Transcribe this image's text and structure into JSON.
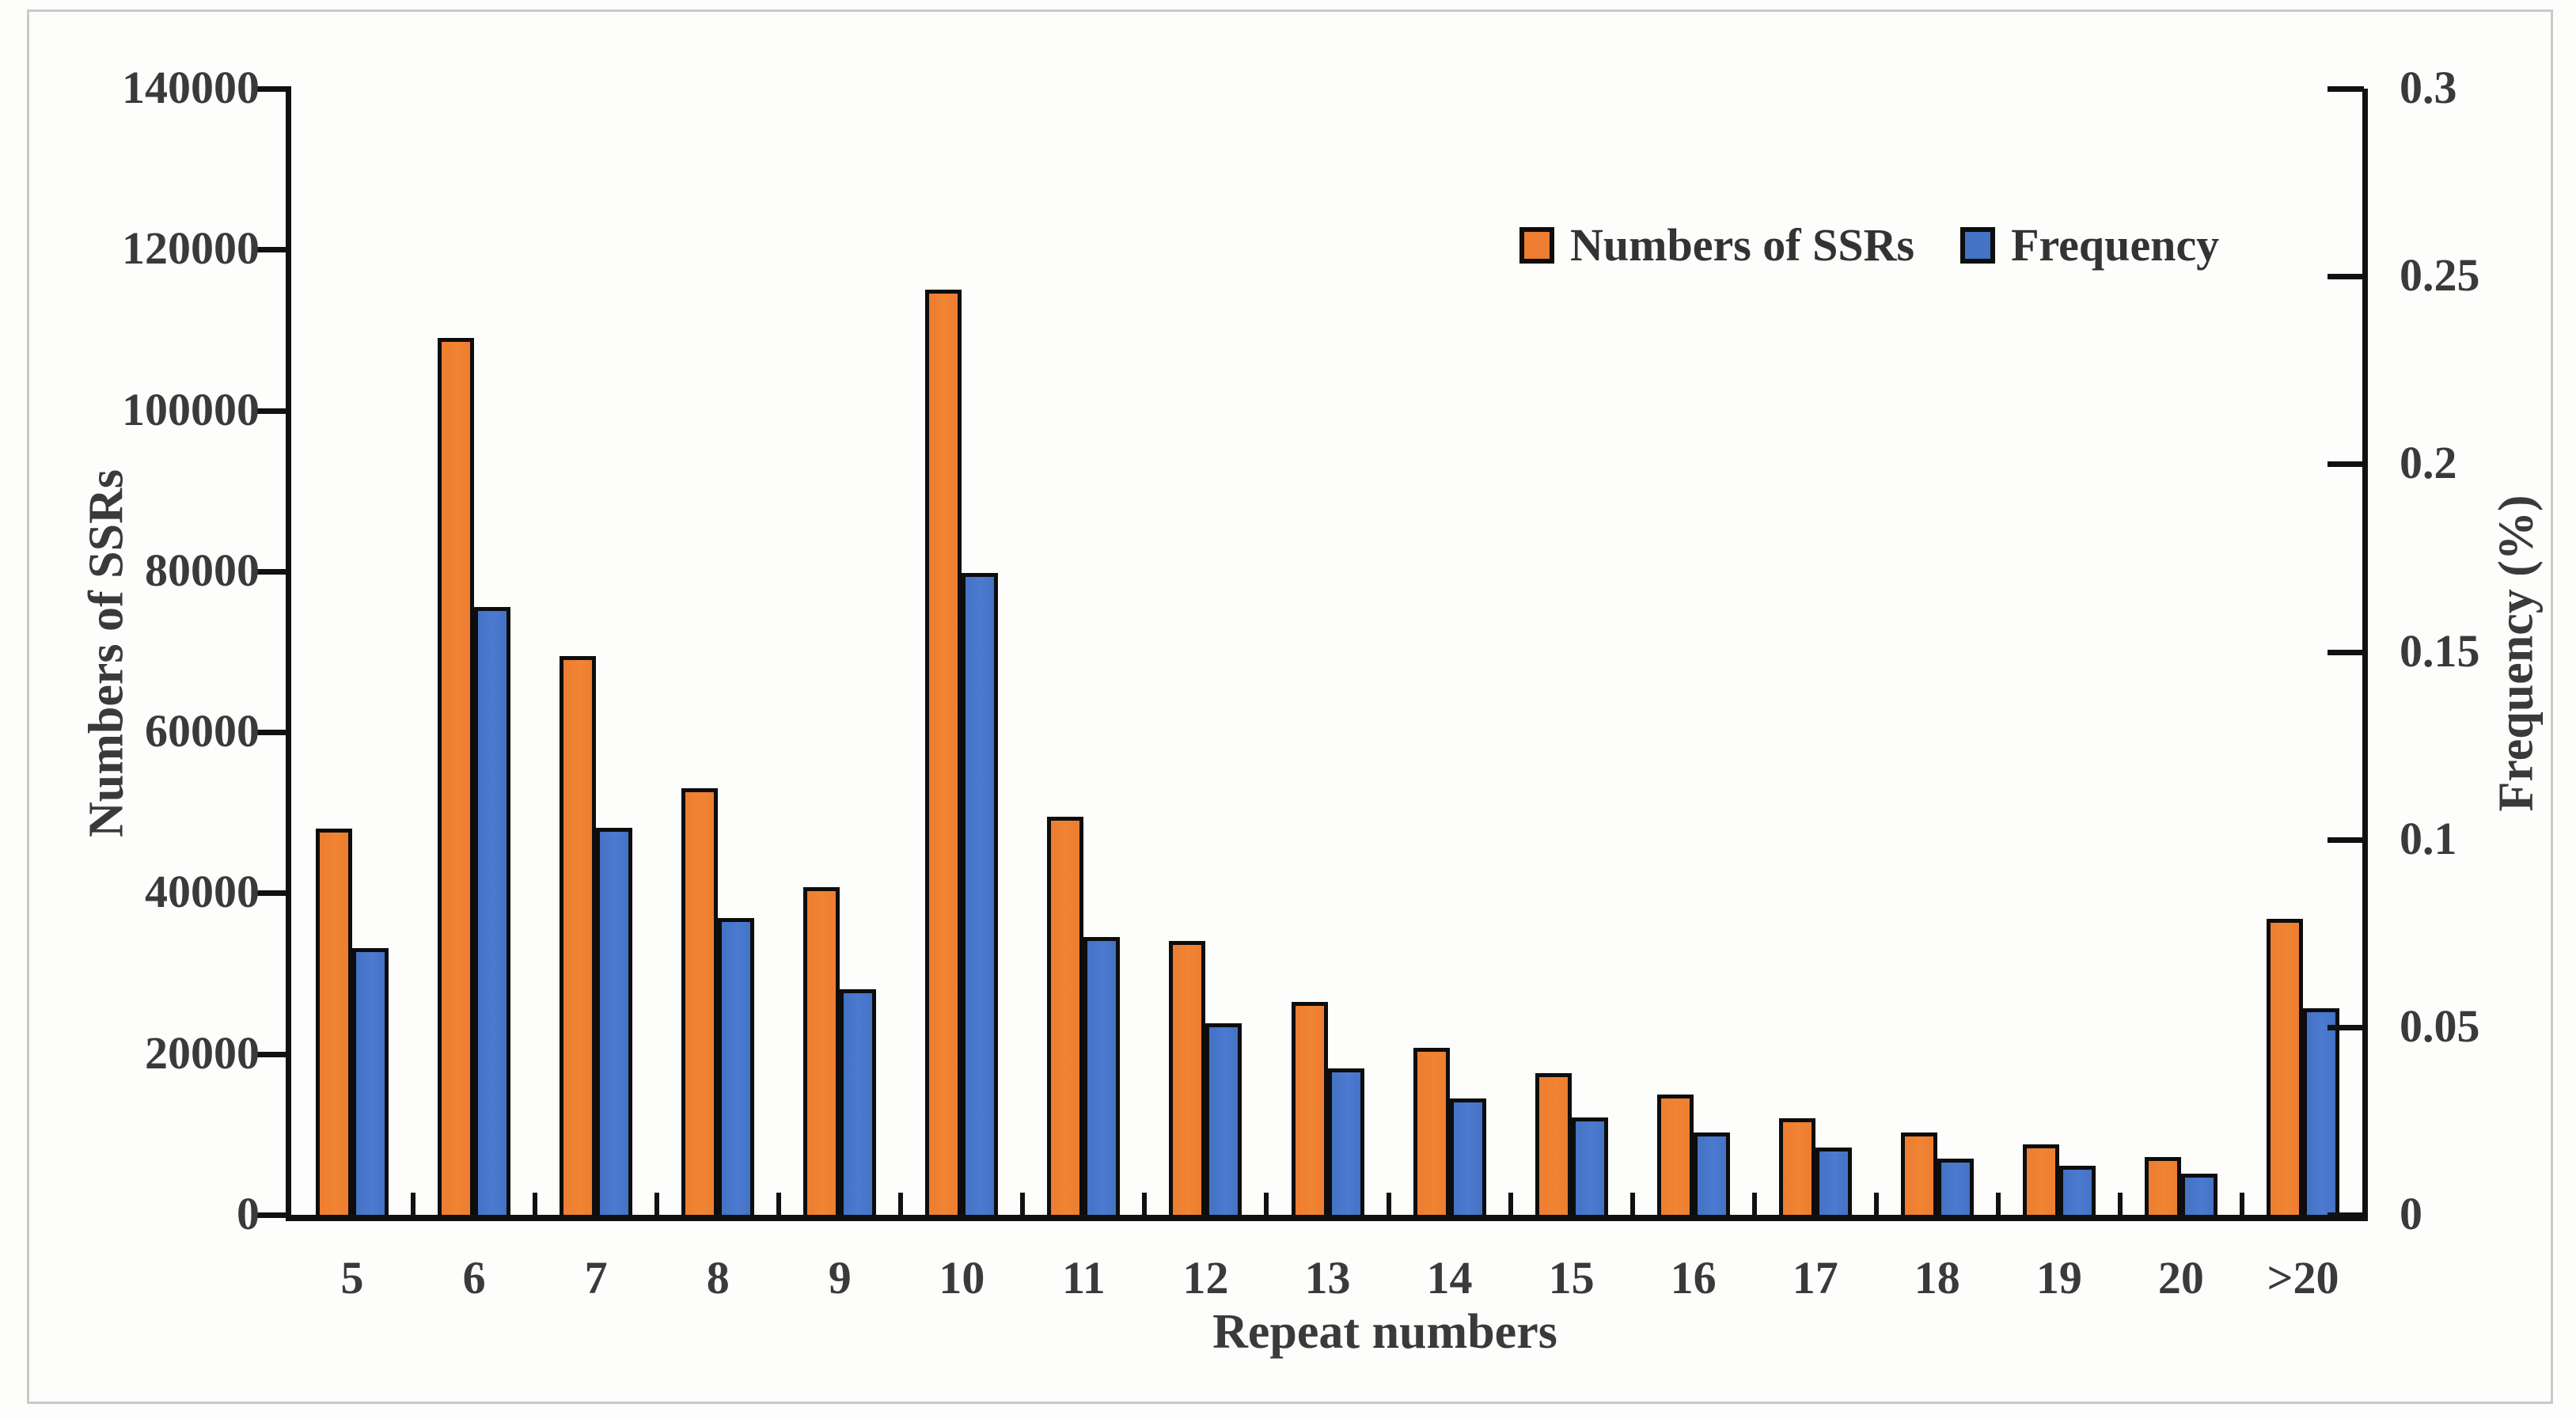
{
  "chart_data": {
    "type": "bar",
    "title": "",
    "categories": [
      "5",
      "6",
      "7",
      "8",
      "9",
      "10",
      "11",
      "12",
      "13",
      "14",
      "15",
      "16",
      "17",
      "18",
      "19",
      "20",
      ">20"
    ],
    "series": [
      {
        "name": "Numbers of SSRs",
        "axis": "left",
        "color": "#ED7D31",
        "values": [
          48000,
          109000,
          69500,
          53000,
          40700,
          115000,
          49500,
          34000,
          26500,
          20800,
          17600,
          15000,
          12000,
          10200,
          8800,
          7200,
          36800
        ]
      },
      {
        "name": "Frequency",
        "axis": "right",
        "color": "#4472C4",
        "values": [
          0.071,
          0.162,
          0.103,
          0.079,
          0.06,
          0.171,
          0.074,
          0.051,
          0.039,
          0.031,
          0.026,
          0.022,
          0.018,
          0.015,
          0.013,
          0.011,
          0.055
        ]
      }
    ],
    "left_axis": {
      "label": "Numbers of SSRs",
      "min": 0,
      "max": 140000,
      "tick_step": 20000,
      "tick_labels": [
        "140000",
        "120000",
        "100000",
        "80000",
        "60000",
        "40000",
        "20000",
        "0"
      ]
    },
    "right_axis": {
      "label": "Frequency (%)",
      "min": 0,
      "max": 0.3,
      "tick_step": 0.05,
      "tick_labels": [
        "0.3",
        "0.25",
        "0.2",
        "0.15",
        "0.1",
        "0.05",
        "0"
      ]
    },
    "x_axis": {
      "label": "Repeat numbers"
    },
    "legend": {
      "position": "top-right-inside",
      "entries": [
        "Numbers of SSRs",
        "Frequency"
      ]
    },
    "grid": false,
    "colors": {
      "bar_border": "#0d0d0d",
      "axis": "#111111",
      "text": "#3a3a3a",
      "frame_border": "#c9c9c9"
    }
  }
}
